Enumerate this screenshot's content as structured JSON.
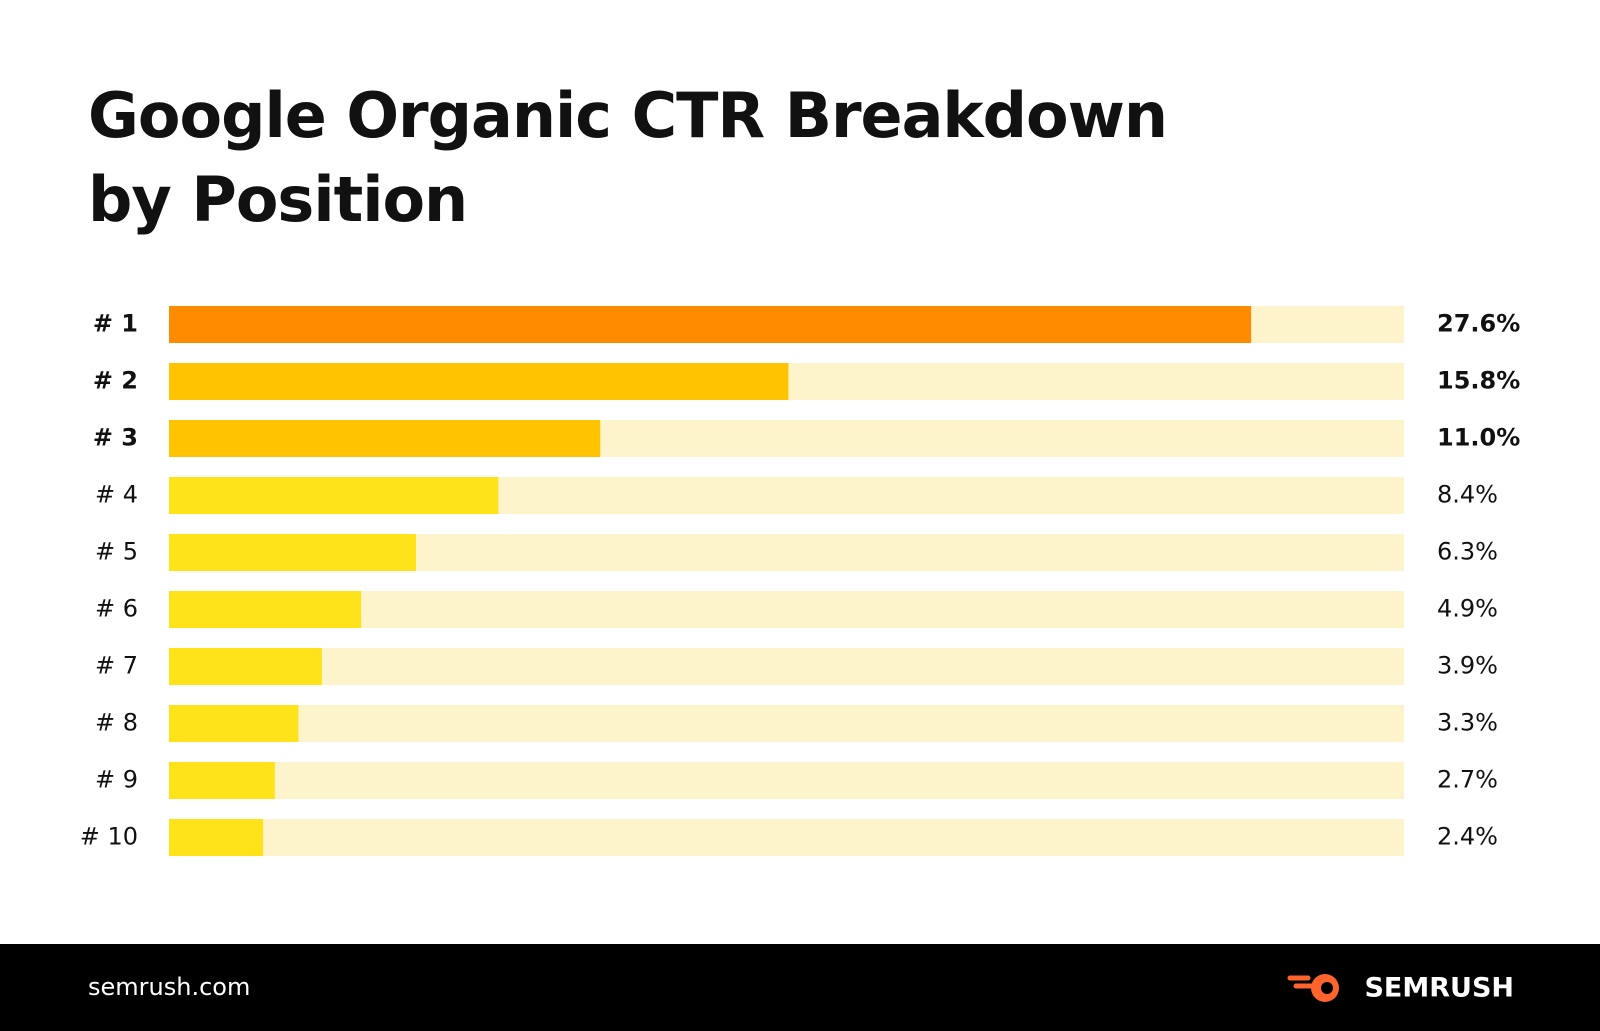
{
  "chart_data": {
    "type": "bar",
    "orientation": "horizontal",
    "title": "Google Organic CTR Breakdown",
    "subtitle": "by Position",
    "categories": [
      "# 1",
      "# 2",
      "# 3",
      "# 4",
      "# 5",
      "# 6",
      "# 7",
      "# 8",
      "# 9",
      "# 10"
    ],
    "values": [
      27.6,
      15.8,
      11.0,
      8.4,
      6.3,
      4.9,
      3.9,
      3.3,
      2.7,
      2.4
    ],
    "value_labels": [
      "27.6%",
      "15.8%",
      "11.0%",
      "8.4%",
      "6.3%",
      "4.9%",
      "3.9%",
      "3.3%",
      "2.7%",
      "2.4%"
    ],
    "colors": [
      "#ff8c00",
      "#ffc300",
      "#ffc300",
      "#ffe31a",
      "#ffe31a",
      "#ffe31a",
      "#ffe31a",
      "#ffe31a",
      "#ffe31a",
      "#ffe31a"
    ],
    "track_color": "#fef4cc",
    "xlim": [
      0,
      31.5
    ]
  },
  "footer": {
    "site": "semrush.com",
    "brand": "SEMRUSH"
  }
}
